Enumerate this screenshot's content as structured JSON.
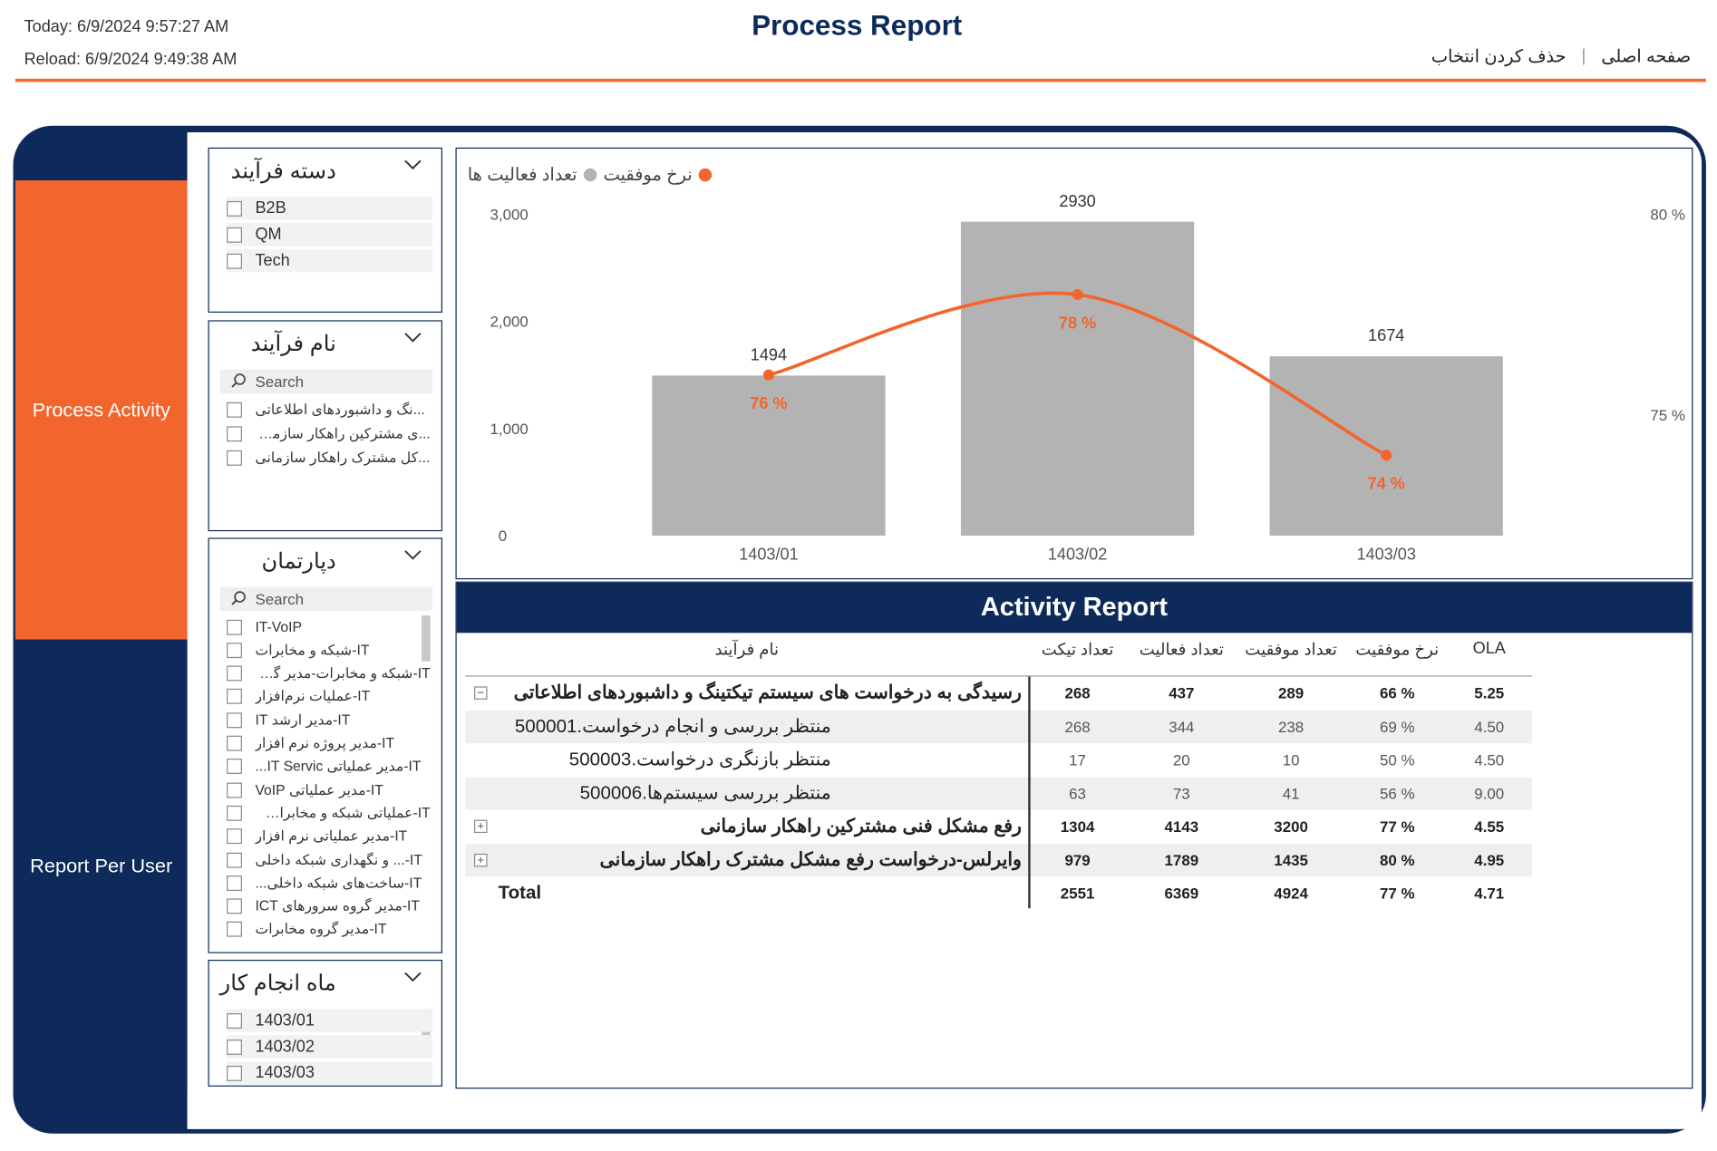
{
  "header": {
    "today": "Today: 6/9/2024 9:57:27 AM",
    "reload": "Reload: 6/9/2024 9:49:38 AM",
    "title": "Process Report",
    "nav_home": "صفحه اصلی",
    "nav_clear": "حذف کردن انتخاب",
    "nav_sep": "|"
  },
  "sidebar": {
    "process_activity": "Process Activity",
    "report_per_user": "Report Per User"
  },
  "slicers": {
    "category": {
      "title": "دسته فرآیند",
      "items": [
        "B2B",
        "QM",
        "Tech"
      ]
    },
    "process_name": {
      "title": "نام فرآیند",
      "search": "Search",
      "items": [
        "...نگ و داشبوردهای اطلاعاتی",
        "...ی مشترکین راهکار سازمانی",
        "...کل مشترک راهکار سازمانی"
      ]
    },
    "department": {
      "title": "دپارتمان",
      "search": "Search",
      "items": [
        "IT-VoIP",
        "IT-شبکه و مخابرات",
        "IT-شبکه و مخابرات-مدیر گروه...",
        "IT-عملیات نرم‌افزار",
        "IT-مدیر ارشد IT",
        "IT-مدیر پروژه نرم افزار",
        "IT-مدیر عملیاتی IT Servic...",
        "IT-مدیر عملیاتی VoIP",
        "IT-عملیاتی شبکه و مخابرات...",
        "IT-مدیر عملیاتی نرم افزار",
        "IT-... و نگهداری شبکه داخلی",
        "IT-ساخت‌های شبکه داخلی...",
        "IT-مدیر گروه سرورهای ICT",
        "IT-مدیر گروه مخابرات"
      ]
    },
    "month": {
      "title": "ماه انجام کار",
      "items": [
        "1403/01",
        "1403/02",
        "1403/03"
      ]
    }
  },
  "chart_data": {
    "type": "bar",
    "title": "",
    "legend": [
      "تعداد فعالیت ها",
      "نرخ موفقیت"
    ],
    "legend_placement": "top-left",
    "categories": [
      "1403/01",
      "1403/02",
      "1403/03"
    ],
    "series": [
      {
        "name": "تعداد فعالیت ها",
        "type": "bar",
        "values": [
          1494,
          2930,
          1674
        ],
        "axis": "left",
        "color": "#b3b3b3"
      },
      {
        "name": "نرخ موفقیت",
        "type": "line",
        "values": [
          76,
          78,
          74
        ],
        "value_labels": [
          "76 %",
          "78 %",
          "74 %"
        ],
        "axis": "right",
        "color": "#f2652d"
      }
    ],
    "y_left": {
      "ticks": [
        "3,000",
        "2,000",
        "1,000",
        "0"
      ],
      "range": [
        0,
        3000
      ]
    },
    "y_right": {
      "ticks": [
        "80 %",
        "75 %"
      ],
      "range": [
        72,
        80
      ]
    },
    "grid": false
  },
  "activity_report": {
    "title": "Activity Report",
    "columns": {
      "name": "نام فرآیند",
      "tickets": "تعداد تیکت",
      "activities": "تعداد فعالیت",
      "successes": "تعداد موفقیت",
      "rate": "نرخ موفقیت",
      "ola": "OLA"
    },
    "rows": [
      {
        "name": "رسیدگی به درخواست های سیستم تیکتینگ و داشبوردهای اطلاعاتی",
        "tickets": "268",
        "activities": "437",
        "successes": "289",
        "rate": "66 %",
        "ola": "5.25",
        "expand": "−"
      },
      {
        "name": "منتظر بررسی و انجام درخواست.500001",
        "tickets": "268",
        "activities": "344",
        "successes": "238",
        "rate": "69 %",
        "ola": "4.50"
      },
      {
        "name": "منتظر بازنگری درخواست.500003",
        "tickets": "17",
        "activities": "20",
        "successes": "10",
        "rate": "50 %",
        "ola": "4.50"
      },
      {
        "name": "منتظر بررسی سیستم‌ها.500006",
        "tickets": "63",
        "activities": "73",
        "successes": "41",
        "rate": "56 %",
        "ola": "9.00"
      },
      {
        "name": "رفع مشکل فنی مشترکین راهکار سازمانی",
        "tickets": "1304",
        "activities": "4143",
        "successes": "3200",
        "rate": "77 %",
        "ola": "4.55",
        "expand": "+"
      },
      {
        "name": "وایرلس-درخواست رفع مشکل مشترک راهکار سازمانی",
        "tickets": "979",
        "activities": "1789",
        "successes": "1435",
        "rate": "80 %",
        "ola": "4.95",
        "expand": "+"
      },
      {
        "name": "Total",
        "tickets": "2551",
        "activities": "6369",
        "successes": "4924",
        "rate": "77 %",
        "ola": "4.71"
      }
    ]
  },
  "colors": {
    "navy": "#0e2a5a",
    "orange": "#f2652d",
    "bar_gray": "#b3b3b3"
  }
}
